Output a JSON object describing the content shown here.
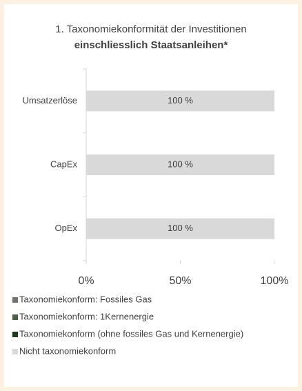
{
  "chart_data": {
    "type": "stacked-bar-horizontal",
    "title": "1. Taxonomiekonformität der Investitionen",
    "subtitle": "einschliesslich Staatsanleihen*",
    "categories": [
      "Umsatzerlöse",
      "CapEx",
      "OpEx"
    ],
    "series": [
      {
        "name": "Taxonomiekonform: Fossiles Gas",
        "color": "#767171",
        "values": [
          0,
          0,
          0
        ]
      },
      {
        "name": "Taxonomiekonform: 1Kernenergie",
        "color": "#4f5f44",
        "values": [
          0,
          0,
          0
        ]
      },
      {
        "name": "Taxonomiekonform (ohne fossiles Gas und Kernenergie)",
        "color": "#1d3a1f",
        "values": [
          0,
          0,
          0
        ]
      },
      {
        "name": "Nicht taxonomiekonform",
        "color": "#d9d9d9",
        "values": [
          100,
          100,
          100
        ],
        "value_labels": [
          "100 %",
          "100 %",
          "100 %"
        ]
      }
    ],
    "xlim": [
      0,
      100
    ],
    "xticks": [
      {
        "value": 0,
        "label": "0%"
      },
      {
        "value": 50,
        "label": "50%"
      },
      {
        "value": 100,
        "label": "100%"
      }
    ],
    "legend": "bottom-left"
  }
}
